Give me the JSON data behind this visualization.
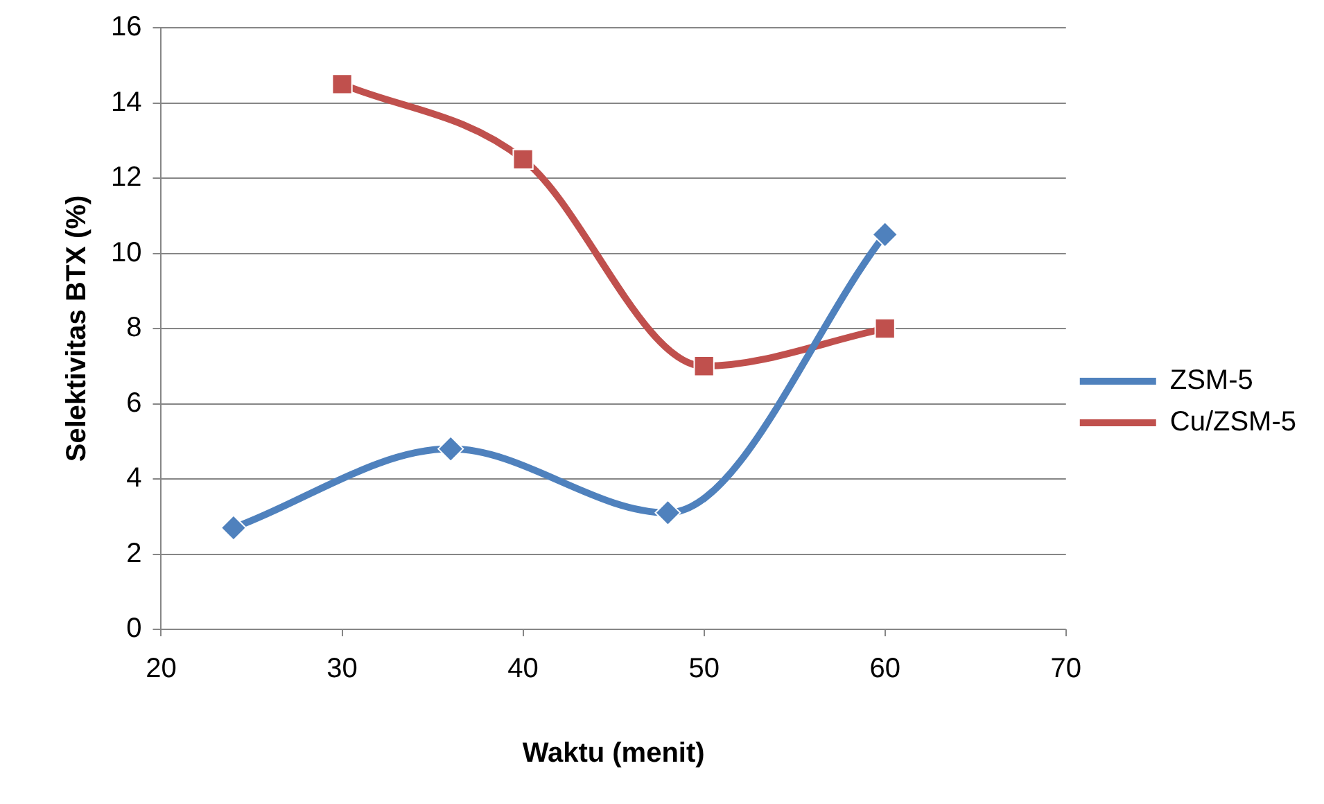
{
  "chart_data": {
    "type": "line",
    "xlabel": "Waktu (menit)",
    "ylabel": "Selektivitas BTX (%)",
    "xlim": [
      20,
      70
    ],
    "xticks": [
      20,
      30,
      40,
      50,
      60,
      70
    ],
    "ylim": [
      0,
      16
    ],
    "yticks": [
      0,
      2,
      4,
      6,
      8,
      10,
      12,
      14,
      16
    ],
    "grid": "y",
    "legend": "right",
    "line_style": "solid",
    "series": [
      {
        "name": "ZSM-5",
        "color": "#4f81bd",
        "marker": "diamond",
        "x": [
          24,
          36,
          48,
          60
        ],
        "values": [
          2.7,
          4.8,
          3.1,
          10.5
        ]
      },
      {
        "name": "Cu/ZSM-5",
        "color": "#c0504d",
        "marker": "square",
        "x": [
          30,
          40,
          50,
          60
        ],
        "values": [
          14.5,
          12.5,
          7,
          8
        ]
      }
    ]
  }
}
